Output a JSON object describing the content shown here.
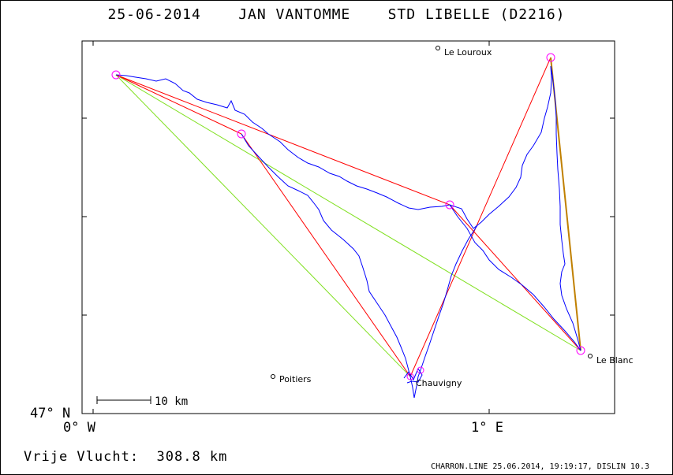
{
  "title": "25-06-2014    JAN VANTOMME    STD LIBELLE (D2216)",
  "axes": {
    "lat_label": "47° N",
    "lon_left_label": "0° W",
    "lon_right_label": "1° E"
  },
  "scale_bar": {
    "label": "10 km"
  },
  "towns": [
    {
      "name": "Le Louroux"
    },
    {
      "name": "Poitiers"
    },
    {
      "name": "Chauvigny"
    },
    {
      "name": "Le Blanc"
    }
  ],
  "footer": {
    "distance": "Vrije Vlucht:  308.8 km",
    "info": "CHARRON.LINE 25.06.2014, 19:19:17, DISLIN 10.3"
  },
  "colors": {
    "track": "#0000ff",
    "task_legs": "#ff0000",
    "alt_legs": "#80e020",
    "final_leg": "#c08000",
    "turnpoint": "#ff00ff"
  }
}
